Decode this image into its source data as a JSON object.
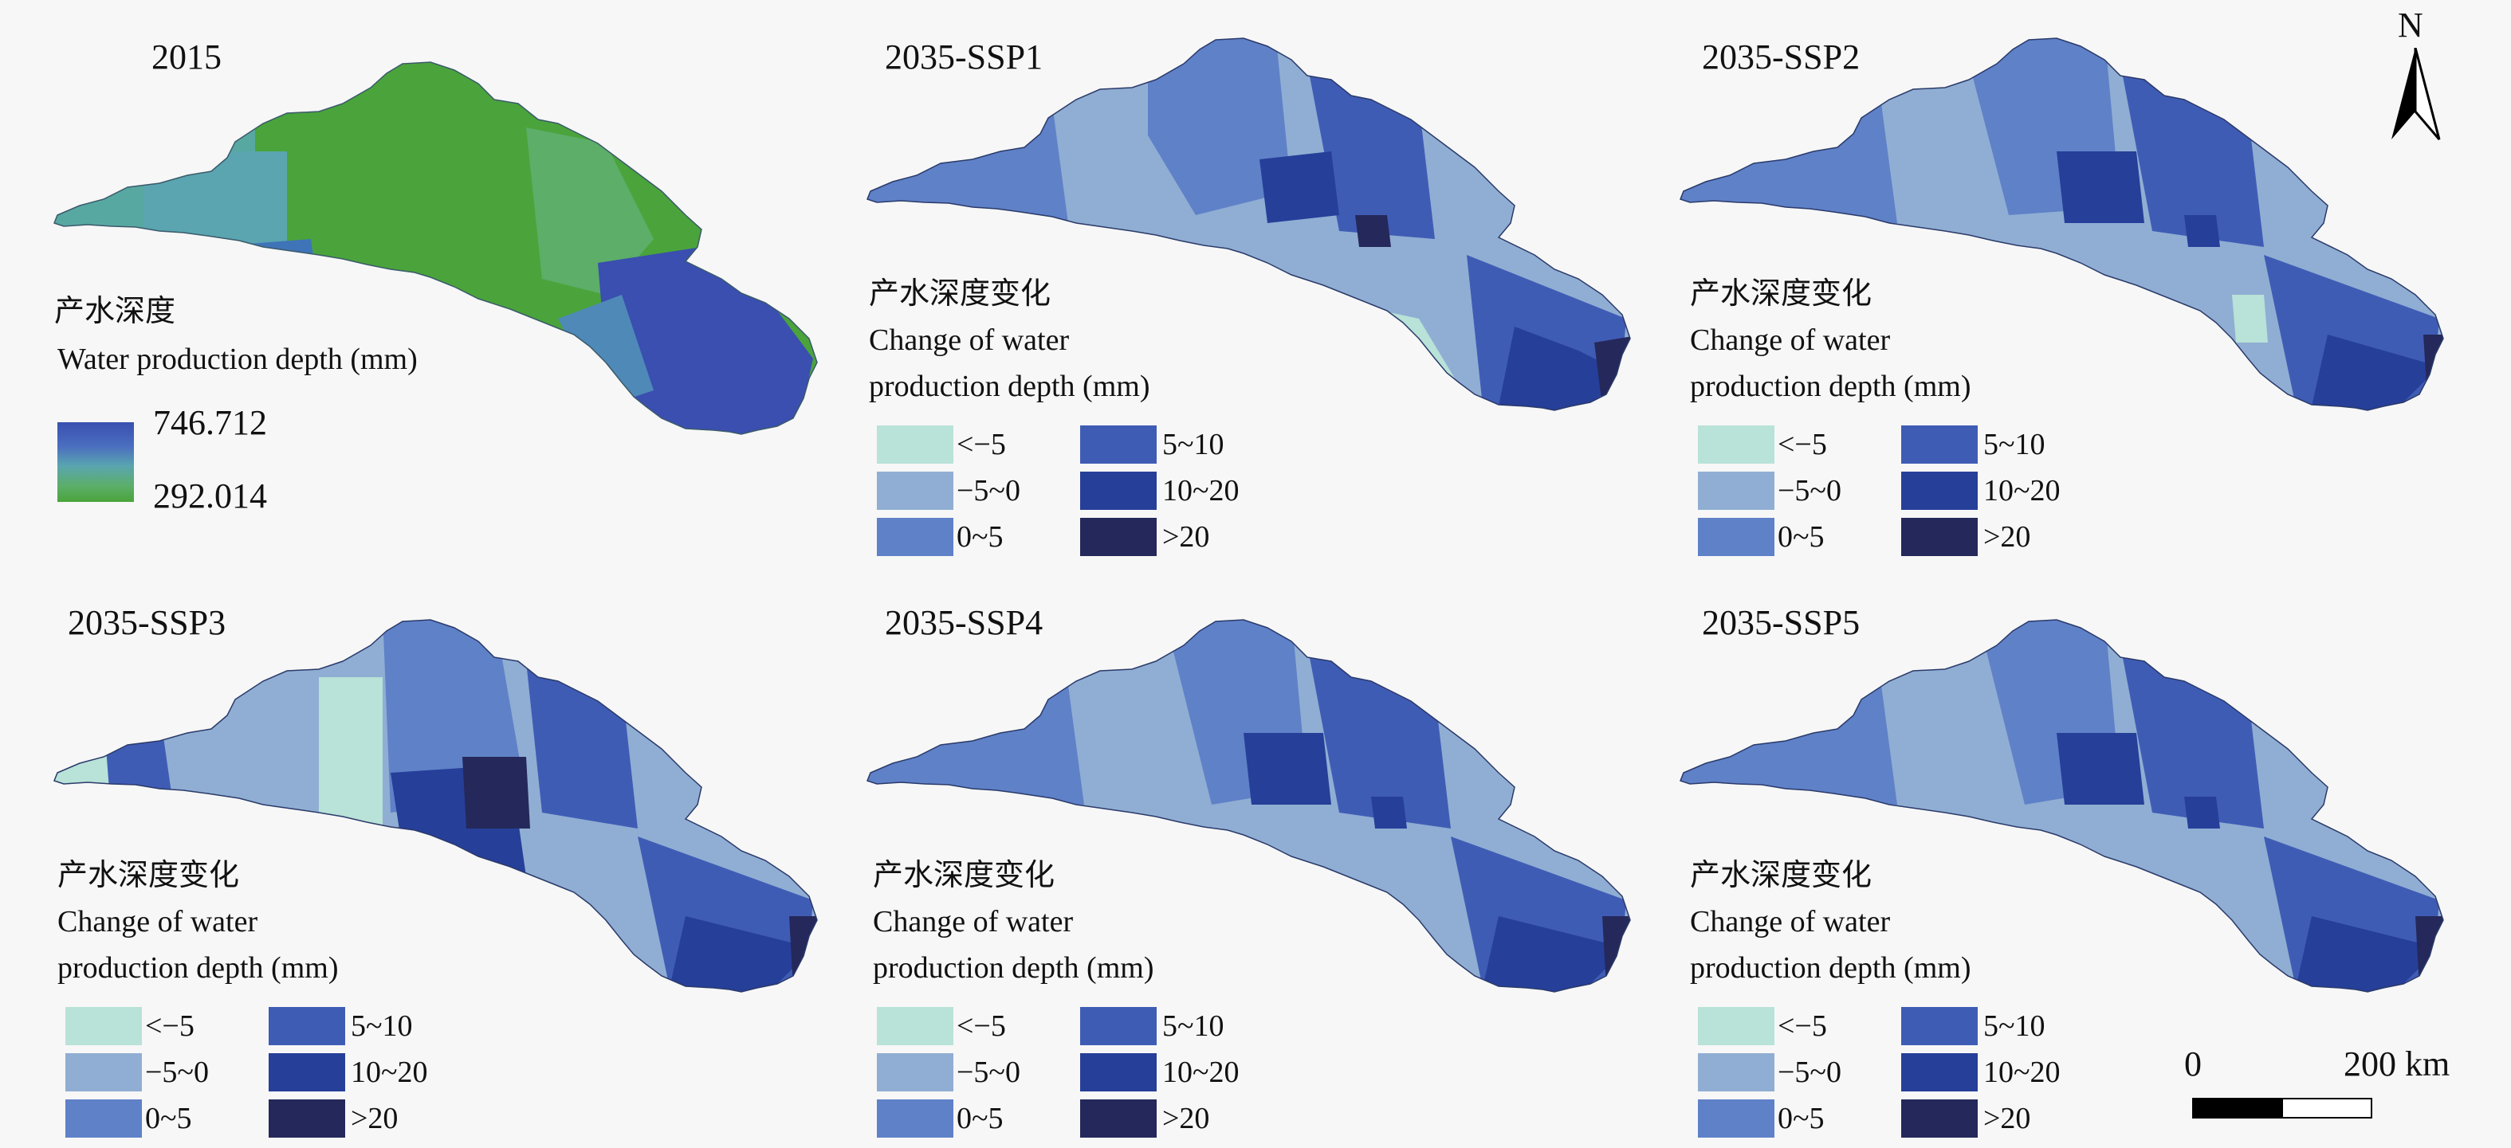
{
  "colors": {
    "lt-5": "#b9e2d8",
    "m5-0": "#90aed3",
    "0-5": "#5f81c8",
    "5-10": "#3f5cb5",
    "10-20": "#263f99",
    "gt20": "#25285a",
    "green": "#4aa43b",
    "green2": "#5cae68",
    "teal": "#5aa5b0",
    "deepblue": "#3a4fb0"
  },
  "panel_2015": {
    "title": "2015",
    "legend_title_cn": "产水深度",
    "legend_title_en": "Water production depth (mm)",
    "max_value": "746.712",
    "min_value": "292.014"
  },
  "change_legend": {
    "title_cn": "产水深度变化",
    "title_en_1": "Change of water",
    "title_en_2": "production depth (mm)",
    "classes": [
      {
        "label": "<−5",
        "color": "#b9e2d8"
      },
      {
        "label": "−5~0",
        "color": "#90aed3"
      },
      {
        "label": "0~5",
        "color": "#5f81c8"
      },
      {
        "label": "5~10",
        "color": "#3f5cb5"
      },
      {
        "label": "10~20",
        "color": "#263f99"
      },
      {
        "label": ">20",
        "color": "#25285a"
      }
    ]
  },
  "panels": [
    {
      "title": "2035-SSP1"
    },
    {
      "title": "2035-SSP2"
    },
    {
      "title": "2035-SSP3"
    },
    {
      "title": "2035-SSP4"
    },
    {
      "title": "2035-SSP5"
    }
  ],
  "north_arrow": {
    "label": "N"
  },
  "scale_bar": {
    "start_label": "0",
    "end_label": "200 km"
  }
}
